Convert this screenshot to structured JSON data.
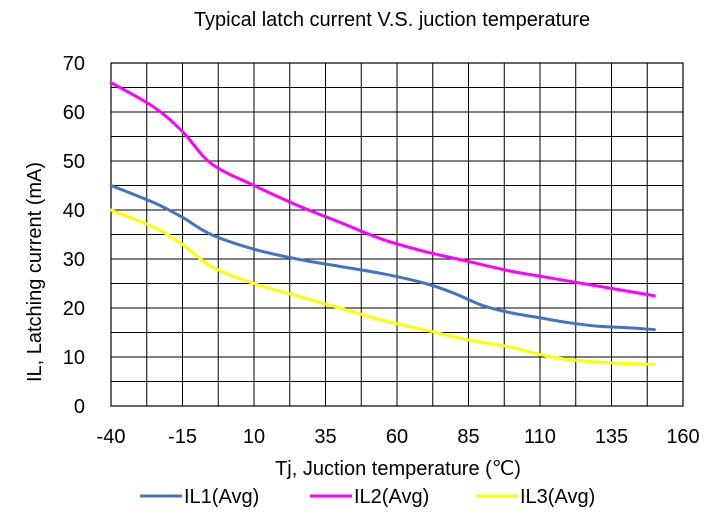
{
  "chart_data": {
    "type": "line",
    "title": "Typical latch current V.S. juction temperature",
    "xlabel": "Tj, Juction temperature (℃)",
    "ylabel": "IL, Latching current (mA)",
    "xlim": [
      -40,
      160
    ],
    "ylim": [
      0,
      70
    ],
    "x_ticks": [
      "-40",
      "-15",
      "10",
      "35",
      "60",
      "85",
      "110",
      "135",
      "160"
    ],
    "y_ticks": [
      "0",
      "10",
      "20",
      "30",
      "40",
      "50",
      "60",
      "70"
    ],
    "grid": true,
    "legend_position": "bottom",
    "series": [
      {
        "name": "IL1(Avg)",
        "color": "#4472C4",
        "points": [
          [
            -40,
            45
          ],
          [
            -25,
            41.5
          ],
          [
            -15,
            38.5
          ],
          [
            -5,
            35
          ],
          [
            10,
            32
          ],
          [
            25,
            30
          ],
          [
            40,
            28.5
          ],
          [
            55,
            27
          ],
          [
            70,
            25
          ],
          [
            80,
            23
          ],
          [
            90,
            20.5
          ],
          [
            100,
            19
          ],
          [
            110,
            18
          ],
          [
            120,
            17
          ],
          [
            130,
            16.3
          ],
          [
            140,
            16
          ],
          [
            150,
            15.6
          ]
        ]
      },
      {
        "name": "IL2(Avg)",
        "color": "#FF00FF",
        "points": [
          [
            -40,
            66
          ],
          [
            -25,
            61
          ],
          [
            -15,
            56
          ],
          [
            -5,
            49.5
          ],
          [
            10,
            45
          ],
          [
            25,
            41
          ],
          [
            40,
            37.5
          ],
          [
            55,
            34
          ],
          [
            70,
            31.5
          ],
          [
            85,
            29.5
          ],
          [
            100,
            27.5
          ],
          [
            110,
            26.5
          ],
          [
            120,
            25.5
          ],
          [
            135,
            24
          ],
          [
            150,
            22.5
          ]
        ]
      },
      {
        "name": "IL3(Avg)",
        "color": "#FFFF00",
        "points": [
          [
            -40,
            40
          ],
          [
            -25,
            36.5
          ],
          [
            -15,
            33
          ],
          [
            -5,
            28.5
          ],
          [
            10,
            25
          ],
          [
            25,
            22.5
          ],
          [
            40,
            20
          ],
          [
            55,
            17.5
          ],
          [
            70,
            15.5
          ],
          [
            85,
            13.5
          ],
          [
            100,
            12
          ],
          [
            110,
            10.5
          ],
          [
            120,
            9.5
          ],
          [
            135,
            8.8
          ],
          [
            150,
            8.5
          ]
        ]
      }
    ]
  }
}
